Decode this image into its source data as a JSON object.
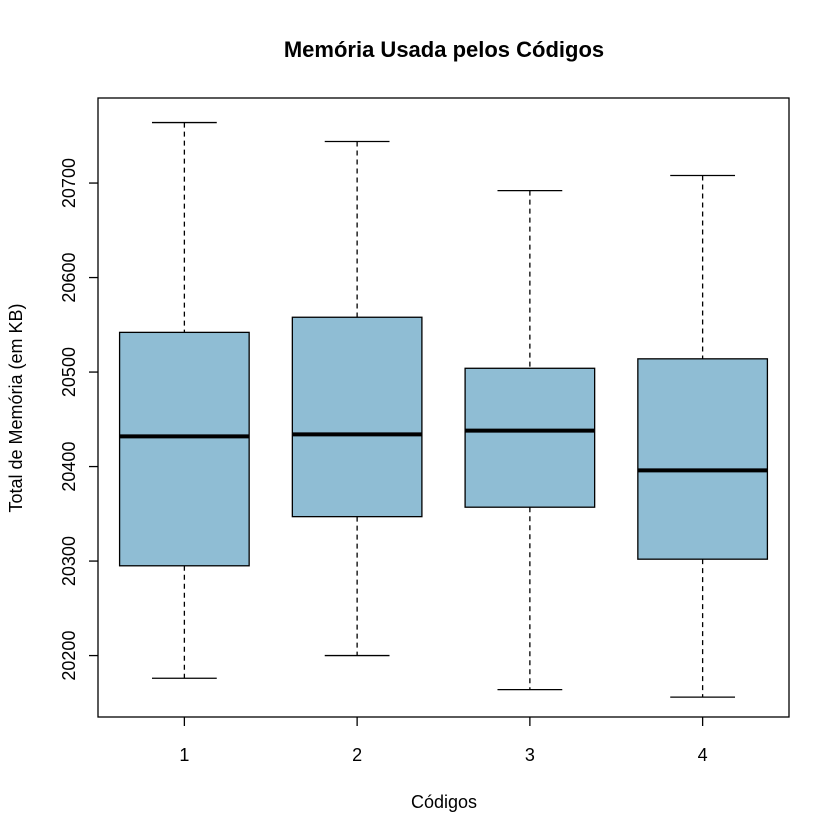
{
  "chart_data": {
    "type": "boxplot",
    "title": "Memória Usada pelos Códigos",
    "xlabel": "Códigos",
    "ylabel": "Total de Memória (em KB)",
    "categories": [
      "1",
      "2",
      "3",
      "4"
    ],
    "ylim": [
      20135,
      20790
    ],
    "yticks": [
      20200,
      20300,
      20400,
      20500,
      20600,
      20700
    ],
    "box_fill": "#8fbdd4",
    "boxes": [
      {
        "category": "1",
        "min": 20176,
        "q1": 20295,
        "median": 20432,
        "q3": 20542,
        "max": 20764
      },
      {
        "category": "2",
        "min": 20200,
        "q1": 20347,
        "median": 20434,
        "q3": 20558,
        "max": 20744
      },
      {
        "category": "3",
        "min": 20164,
        "q1": 20357,
        "median": 20438,
        "q3": 20504,
        "max": 20692
      },
      {
        "category": "4",
        "min": 20156,
        "q1": 20302,
        "median": 20396,
        "q3": 20514,
        "max": 20708
      }
    ]
  }
}
